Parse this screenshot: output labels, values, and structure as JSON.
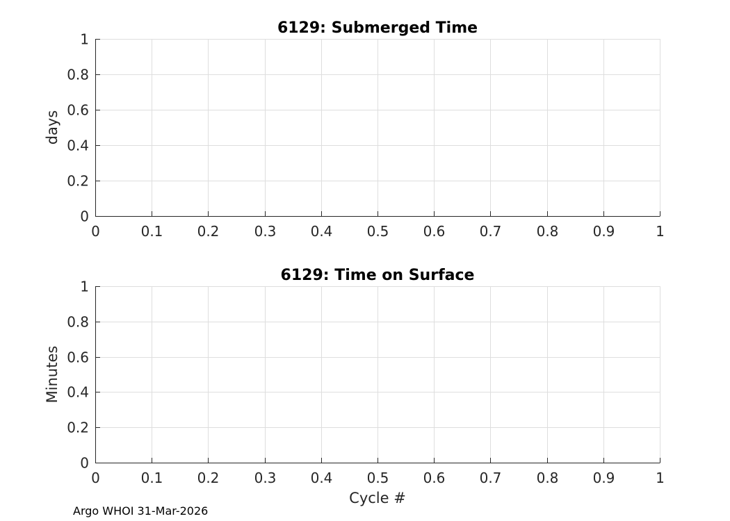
{
  "chart_data": [
    {
      "type": "line",
      "title": "6129: Submerged Time",
      "xlabel": "",
      "ylabel": "days",
      "xlim": [
        0,
        1
      ],
      "ylim": [
        0,
        1
      ],
      "xticks": [
        "0",
        "0.1",
        "0.2",
        "0.3",
        "0.4",
        "0.5",
        "0.6",
        "0.7",
        "0.8",
        "0.9",
        "1"
      ],
      "yticks": [
        "0",
        "0.2",
        "0.4",
        "0.6",
        "0.8",
        "1"
      ],
      "grid": true,
      "series": []
    },
    {
      "type": "line",
      "title": "6129: Time on Surface",
      "xlabel": "Cycle #",
      "ylabel": "Minutes",
      "xlim": [
        0,
        1
      ],
      "ylim": [
        0,
        1
      ],
      "xticks": [
        "0",
        "0.1",
        "0.2",
        "0.3",
        "0.4",
        "0.5",
        "0.6",
        "0.7",
        "0.8",
        "0.9",
        "1"
      ],
      "yticks": [
        "0",
        "0.2",
        "0.4",
        "0.6",
        "0.8",
        "1"
      ],
      "grid": true,
      "series": []
    }
  ],
  "footer": "Argo WHOI 31-Mar-2026",
  "colors": {
    "grid": "#dedede",
    "axis": "#262626",
    "text": "#000000"
  }
}
